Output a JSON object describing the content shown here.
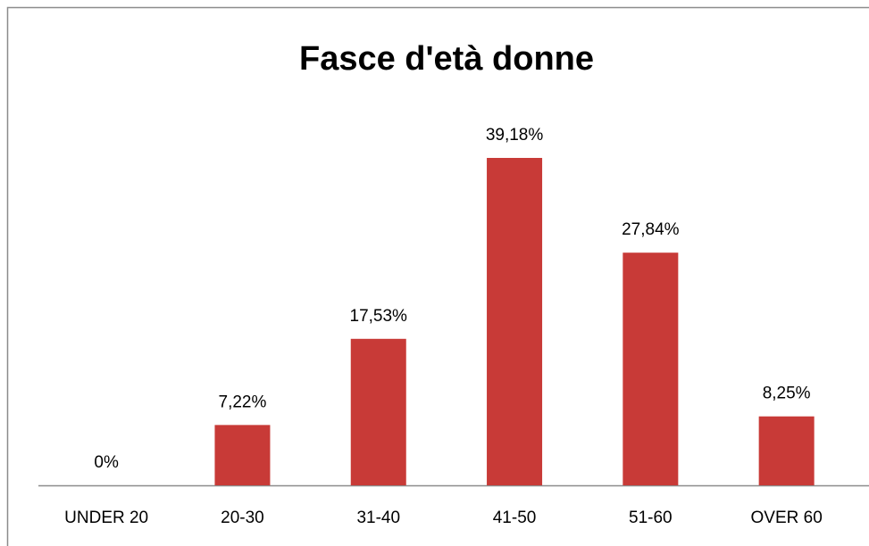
{
  "chart_data": {
    "type": "bar",
    "title": "Fasce d'età donne",
    "categories": [
      "UNDER 20",
      "20-30",
      "31-40",
      "41-50",
      "51-60",
      "OVER 60"
    ],
    "values": [
      0,
      7.22,
      17.53,
      39.18,
      27.84,
      8.25
    ],
    "value_labels": [
      "0%",
      "7,22%",
      "17,53%",
      "39,18%",
      "27,84%",
      "8,25%"
    ],
    "color": "#c83a37"
  }
}
